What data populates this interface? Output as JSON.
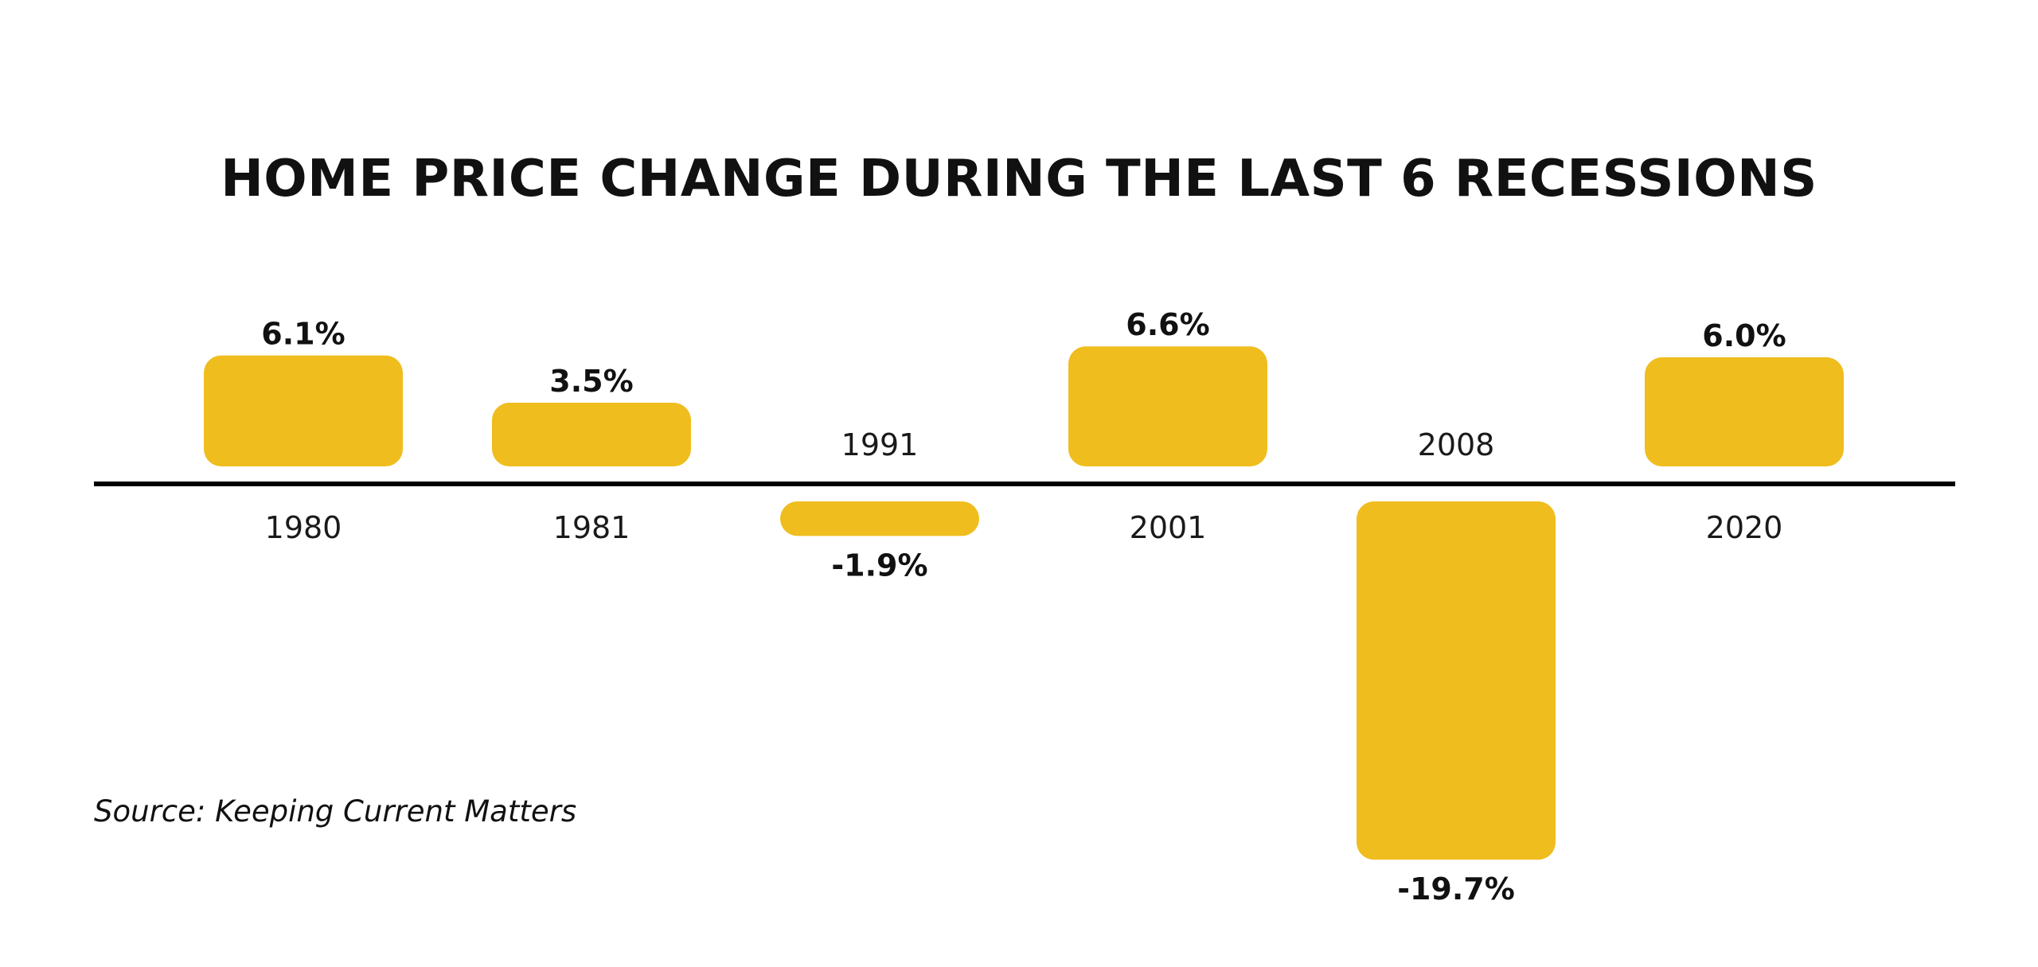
{
  "chart_data": {
    "type": "bar",
    "title": "HOME PRICE CHANGE DURING THE LAST 6 RECESSIONS",
    "categories": [
      "1980",
      "1981",
      "1991",
      "2001",
      "2008",
      "2020"
    ],
    "values": [
      6.1,
      3.5,
      -1.9,
      6.6,
      -19.7,
      6.0
    ],
    "value_labels": [
      "6.1%",
      "3.5%",
      "-1.9%",
      "6.6%",
      "-19.7%",
      "6.0%"
    ],
    "ylim": [
      -19.7,
      6.6
    ],
    "xlabel": "",
    "ylabel": "",
    "grid": false,
    "colors": {
      "bar": "#F0BD1E",
      "baseline": "#000000",
      "text": "#111111"
    }
  },
  "source": "Source: Keeping Current Matters"
}
